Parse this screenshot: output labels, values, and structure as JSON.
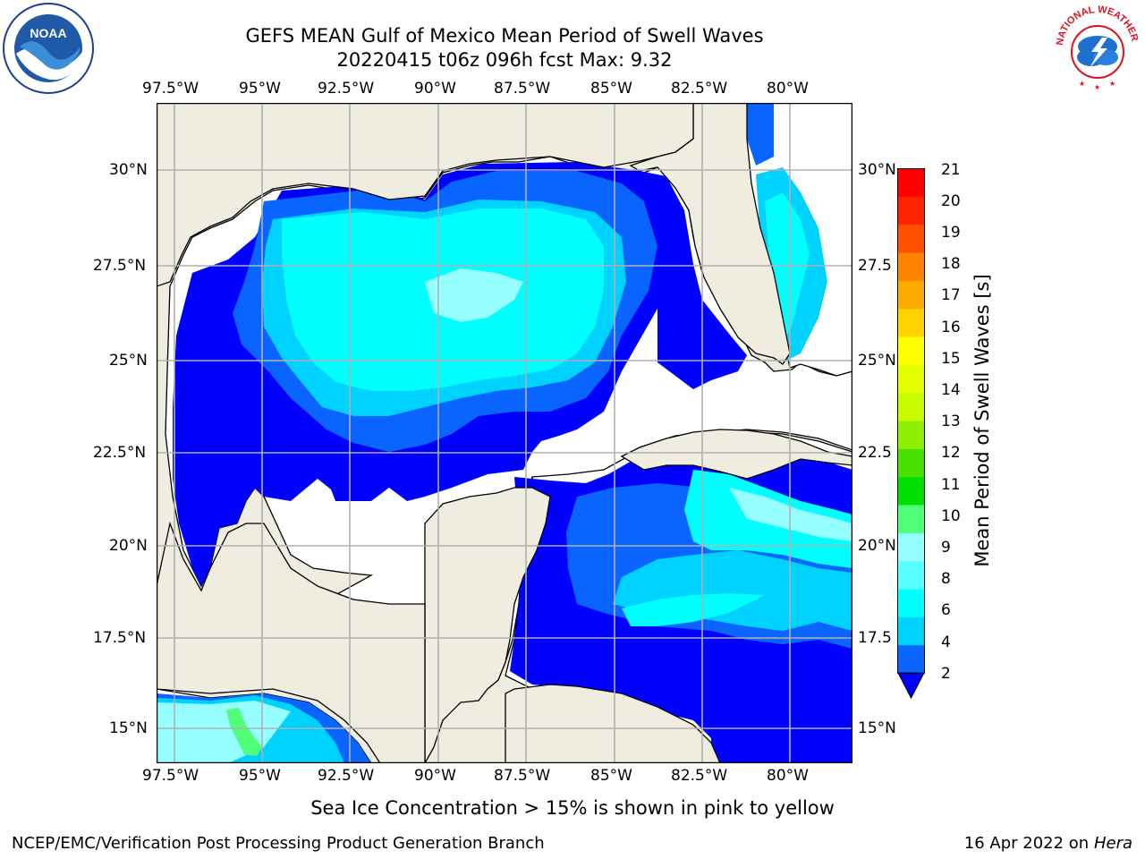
{
  "title": {
    "line1": "GEFS MEAN Gulf of Mexico Mean Period of Swell Waves",
    "line2": "20220415 t06z 096h fcst   Max: 9.32"
  },
  "logos": {
    "left": {
      "text": "NOAA",
      "ring_text": "NATIONAL OCEANIC AND ATMOSPHERIC ADMINISTRATION · U.S. DEPARTMENT OF COMMERCE"
    },
    "right": {
      "ring_text": "NATIONAL WEATHER SERVICE"
    }
  },
  "map": {
    "lon_labels": [
      "97.5°W",
      "95°W",
      "92.5°W",
      "90°W",
      "87.5°W",
      "85°W",
      "82.5°W",
      "80°W"
    ],
    "lat_labels": [
      "30°N",
      "27.5°N",
      "25°N",
      "22.5°N",
      "20°N",
      "17.5°N",
      "15°N"
    ],
    "lat_labels_right": [
      "30°N",
      "27.5",
      "25°N",
      "22.5",
      "20°N",
      "17.5",
      "15°N"
    ],
    "lon_range": [
      -98,
      -78.2
    ],
    "lat_range": [
      14,
      31.7
    ],
    "colors": {
      "land": "#eeede0",
      "sea_no_data": "#ffffff",
      "grid": "#b0b0b0"
    }
  },
  "colorbar": {
    "label": "Mean Period of Swell Waves [s]",
    "ticks": [
      "2",
      "4",
      "6",
      "8",
      "9",
      "10",
      "11",
      "12",
      "13",
      "14",
      "15",
      "16",
      "17",
      "18",
      "19",
      "20",
      "21"
    ],
    "extend": "min",
    "under_color": "#0000ff",
    "colors": [
      "#0a64ff",
      "#00d2ff",
      "#00ffff",
      "#5affff",
      "#96ffff",
      "#50ff78",
      "#00e000",
      "#48e000",
      "#8ef000",
      "#c8fa00",
      "#e6ff00",
      "#ffff00",
      "#ffd200",
      "#ffaa00",
      "#ff8200",
      "#ff5000",
      "#ff2400",
      "#ff0000"
    ]
  },
  "footer": {
    "caption": "Sea Ice Concentration > 15% is shown in pink to yellow",
    "left": "NCEP/EMC/Verification Post Processing Product Generation Branch",
    "date": "16 Apr 2022 on ",
    "machine": "Hera"
  }
}
